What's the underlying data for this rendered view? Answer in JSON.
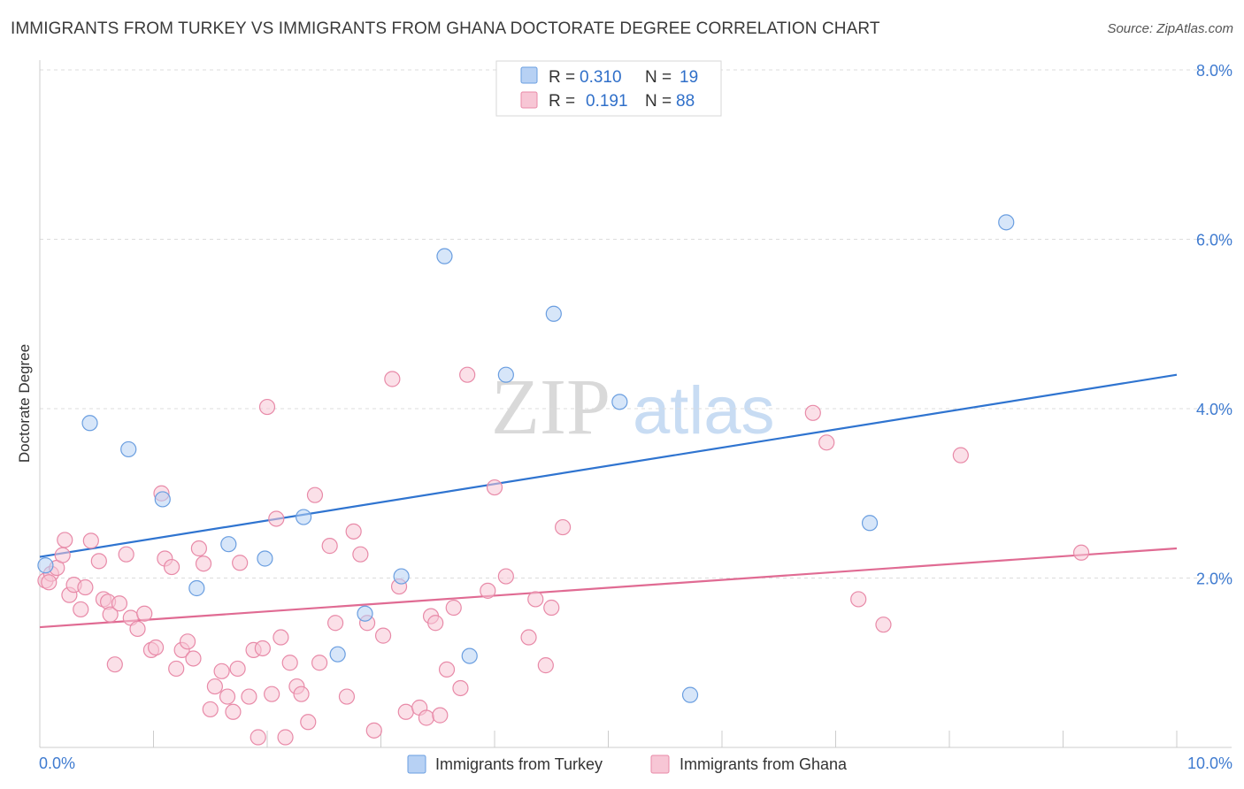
{
  "chart_data": {
    "type": "scatter",
    "title": "IMMIGRANTS FROM TURKEY VS IMMIGRANTS FROM GHANA DOCTORATE DEGREE CORRELATION CHART",
    "source": "Source: ZipAtlas.com",
    "watermark": {
      "zip": "ZIP",
      "atlas": "atlas"
    },
    "xlabel": "",
    "ylabel": "Doctorate Degree",
    "xlim": [
      0,
      10
    ],
    "ylim": [
      0,
      8.0
    ],
    "x_tick_labels": [
      {
        "value": 0,
        "label": "0.0%"
      },
      {
        "value": 10,
        "label": "10.0%"
      }
    ],
    "y_tick_labels": [
      {
        "value": 2,
        "label": "2.0%"
      },
      {
        "value": 4,
        "label": "4.0%"
      },
      {
        "value": 6,
        "label": "6.0%"
      },
      {
        "value": 8,
        "label": "8.0%"
      }
    ],
    "legend_position": "top-center",
    "stats": [
      {
        "r_label": "R =",
        "r_value": "0.310",
        "n_label": "N =",
        "n_value": "19"
      },
      {
        "r_label": "R =",
        "r_value": "0.191",
        "n_label": "N =",
        "n_value": "88"
      }
    ],
    "series": [
      {
        "name": "Immigrants from Turkey",
        "color": "#6a9ee0",
        "fill": "#b7d1f4",
        "line_color": "#2f74d0",
        "trend": [
          [
            0,
            2.25
          ],
          [
            10,
            4.4
          ]
        ],
        "points": [
          [
            0.05,
            2.15
          ],
          [
            0.44,
            3.83
          ],
          [
            0.78,
            3.52
          ],
          [
            1.08,
            2.93
          ],
          [
            1.38,
            1.88
          ],
          [
            1.66,
            2.4
          ],
          [
            1.98,
            2.23
          ],
          [
            2.32,
            2.72
          ],
          [
            2.62,
            1.1
          ],
          [
            2.86,
            1.58
          ],
          [
            3.18,
            2.02
          ],
          [
            3.56,
            5.8
          ],
          [
            3.78,
            1.08
          ],
          [
            4.1,
            4.4
          ],
          [
            4.52,
            5.12
          ],
          [
            5.1,
            4.08
          ],
          [
            5.72,
            0.62
          ],
          [
            7.3,
            2.65
          ],
          [
            8.5,
            6.2
          ]
        ]
      },
      {
        "name": "Immigrants from Ghana",
        "color": "#e88aa8",
        "fill": "#f7c6d5",
        "line_color": "#e06b93",
        "trend": [
          [
            0,
            1.42
          ],
          [
            10,
            2.35
          ]
        ],
        "points": [
          [
            0.05,
            1.97
          ],
          [
            0.1,
            2.05
          ],
          [
            0.15,
            2.12
          ],
          [
            0.2,
            2.27
          ],
          [
            0.22,
            2.45
          ],
          [
            0.26,
            1.8
          ],
          [
            0.3,
            1.92
          ],
          [
            0.36,
            1.63
          ],
          [
            0.4,
            1.89
          ],
          [
            0.45,
            2.44
          ],
          [
            0.52,
            2.2
          ],
          [
            0.56,
            1.75
          ],
          [
            0.6,
            1.72
          ],
          [
            0.62,
            1.57
          ],
          [
            0.66,
            0.98
          ],
          [
            0.7,
            1.7
          ],
          [
            0.76,
            2.28
          ],
          [
            0.8,
            1.53
          ],
          [
            0.86,
            1.4
          ],
          [
            0.92,
            1.58
          ],
          [
            0.98,
            1.15
          ],
          [
            1.02,
            1.18
          ],
          [
            1.07,
            3.0
          ],
          [
            1.1,
            2.23
          ],
          [
            1.16,
            2.13
          ],
          [
            1.2,
            0.93
          ],
          [
            1.25,
            1.15
          ],
          [
            1.3,
            1.25
          ],
          [
            1.35,
            1.05
          ],
          [
            1.4,
            2.35
          ],
          [
            1.44,
            2.17
          ],
          [
            1.5,
            0.45
          ],
          [
            1.54,
            0.72
          ],
          [
            1.6,
            0.9
          ],
          [
            1.65,
            0.6
          ],
          [
            1.7,
            0.42
          ],
          [
            1.74,
            0.93
          ],
          [
            1.76,
            2.18
          ],
          [
            1.84,
            0.6
          ],
          [
            1.88,
            1.15
          ],
          [
            1.92,
            0.12
          ],
          [
            1.96,
            1.17
          ],
          [
            2.0,
            4.02
          ],
          [
            2.04,
            0.63
          ],
          [
            2.08,
            2.7
          ],
          [
            2.12,
            1.3
          ],
          [
            2.16,
            0.12
          ],
          [
            2.2,
            1.0
          ],
          [
            2.26,
            0.72
          ],
          [
            2.3,
            0.63
          ],
          [
            2.36,
            0.3
          ],
          [
            2.42,
            2.98
          ],
          [
            2.46,
            1.0
          ],
          [
            2.55,
            2.38
          ],
          [
            2.6,
            1.47
          ],
          [
            2.7,
            0.6
          ],
          [
            2.76,
            2.55
          ],
          [
            2.82,
            2.28
          ],
          [
            2.88,
            1.47
          ],
          [
            2.94,
            0.2
          ],
          [
            3.02,
            1.32
          ],
          [
            3.1,
            4.35
          ],
          [
            3.16,
            1.9
          ],
          [
            3.22,
            0.42
          ],
          [
            3.34,
            0.47
          ],
          [
            3.4,
            0.35
          ],
          [
            3.44,
            1.55
          ],
          [
            3.48,
            1.47
          ],
          [
            3.52,
            0.38
          ],
          [
            3.58,
            0.92
          ],
          [
            3.64,
            1.65
          ],
          [
            3.7,
            0.7
          ],
          [
            3.76,
            4.4
          ],
          [
            3.94,
            1.85
          ],
          [
            4.0,
            3.07
          ],
          [
            4.1,
            2.02
          ],
          [
            4.3,
            1.3
          ],
          [
            4.36,
            1.75
          ],
          [
            4.45,
            0.97
          ],
          [
            4.5,
            1.65
          ],
          [
            4.6,
            2.6
          ],
          [
            6.8,
            3.95
          ],
          [
            6.92,
            3.6
          ],
          [
            7.2,
            1.75
          ],
          [
            7.42,
            1.45
          ],
          [
            8.1,
            3.45
          ],
          [
            9.16,
            2.3
          ],
          [
            0.08,
            1.95
          ]
        ]
      }
    ]
  }
}
